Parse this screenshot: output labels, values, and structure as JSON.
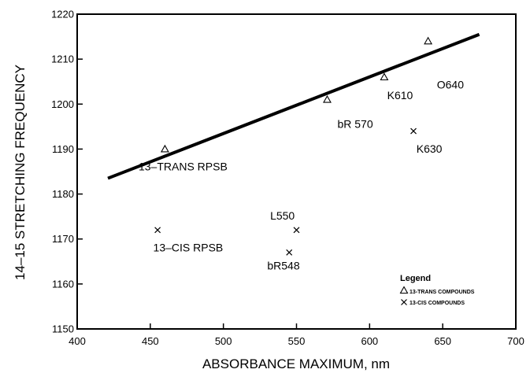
{
  "chart_data": {
    "type": "scatter",
    "title": "",
    "xlabel": "ABSORBANCE MAXIMUM, nm",
    "ylabel": "14–15 STRETCHING FREQUENCY",
    "xlim": [
      400,
      700
    ],
    "ylim": [
      1150,
      1220
    ],
    "xticks": [
      400,
      450,
      500,
      550,
      600,
      650,
      700
    ],
    "yticks": [
      1150,
      1160,
      1170,
      1180,
      1190,
      1200,
      1210,
      1220
    ],
    "grid": false,
    "legend": {
      "title": "Legend",
      "placement": "bottom-right",
      "items": [
        {
          "marker": "triangle",
          "label": "13-TRANS COMPOUNDS"
        },
        {
          "marker": "x",
          "label": "13-CIS COMPOUNDS"
        }
      ]
    },
    "series": [
      {
        "name": "13-TRANS COMPOUNDS",
        "marker": "triangle",
        "points": [
          {
            "x": 460,
            "y": 1190
          },
          {
            "x": 571,
            "y": 1201
          },
          {
            "x": 610,
            "y": 1206
          },
          {
            "x": 640,
            "y": 1214
          }
        ]
      },
      {
        "name": "13-CIS COMPOUNDS",
        "marker": "x",
        "points": [
          {
            "x": 455,
            "y": 1172
          },
          {
            "x": 550,
            "y": 1172
          },
          {
            "x": 545,
            "y": 1167
          },
          {
            "x": 630,
            "y": 1194
          }
        ]
      }
    ],
    "fit_line": {
      "x1": 421,
      "y1": 1183.5,
      "x2": 675,
      "y2": 1215.5
    },
    "annotations": [
      {
        "text": "13–TRANS RPSB",
        "x": 442,
        "y": 1185.3
      },
      {
        "text": "bR 570",
        "x": 578,
        "y": 1194.7
      },
      {
        "text": "K610",
        "x": 612,
        "y": 1201.1
      },
      {
        "text": "O640",
        "x": 646,
        "y": 1203.5
      },
      {
        "text": "K630",
        "x": 632,
        "y": 1189.2
      },
      {
        "text": "L550",
        "x": 532,
        "y": 1174.3
      },
      {
        "text": "13–CIS RPSB",
        "x": 452,
        "y": 1167.2
      },
      {
        "text": "bR548",
        "x": 530,
        "y": 1163.2
      }
    ]
  }
}
